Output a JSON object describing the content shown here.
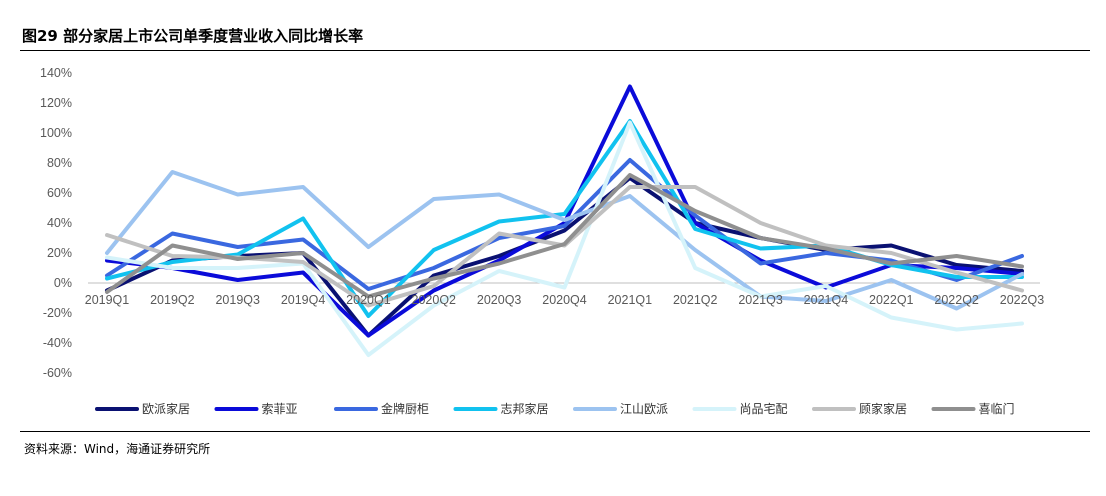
{
  "title": "图29 部分家居上市公司单季度营业收入同比增长率",
  "source": "资料来源：Wind，海通证券研究所",
  "chart_data": {
    "type": "line",
    "categories": [
      "2019Q1",
      "2019Q2",
      "2019Q3",
      "2019Q4",
      "2020Q1",
      "2020Q2",
      "2020Q3",
      "2020Q4",
      "2021Q1",
      "2021Q2",
      "2021Q3",
      "2021Q4",
      "2022Q1",
      "2022Q2",
      "2022Q3"
    ],
    "ylim": [
      -60,
      140
    ],
    "yticks": [
      -60,
      -40,
      -20,
      0,
      20,
      40,
      60,
      80,
      100,
      120,
      140
    ],
    "ytick_labels": [
      "-60%",
      "-40%",
      "-20%",
      "0%",
      "20%",
      "40%",
      "60%",
      "80%",
      "100%",
      "120%",
      "140%"
    ],
    "grid": false,
    "legend_position": "bottom",
    "series": [
      {
        "name": "欧派家居",
        "color": "#0a1172",
        "values": [
          -5,
          15,
          18,
          20,
          -35,
          5,
          18,
          35,
          70,
          40,
          30,
          22,
          25,
          12,
          8
        ]
      },
      {
        "name": "索菲亚",
        "color": "#0b0bd9",
        "values": [
          15,
          10,
          2,
          7,
          -35,
          -5,
          15,
          40,
          131,
          40,
          15,
          -3,
          12,
          10,
          6
        ]
      },
      {
        "name": "金牌厨柜",
        "color": "#3a68e0",
        "values": [
          5,
          33,
          24,
          29,
          -4,
          10,
          30,
          38,
          82,
          45,
          13,
          20,
          15,
          2,
          18
        ]
      },
      {
        "name": "志邦家居",
        "color": "#11c2ef",
        "values": [
          3,
          14,
          19,
          43,
          -22,
          22,
          41,
          46,
          108,
          36,
          23,
          25,
          12,
          4,
          4
        ]
      },
      {
        "name": "江山欧派",
        "color": "#9cc3f0",
        "values": [
          20,
          74,
          59,
          64,
          24,
          56,
          59,
          42,
          58,
          22,
          -9,
          -12,
          2,
          -17,
          6
        ]
      },
      {
        "name": "尚品宅配",
        "color": "#d5f3fa",
        "values": [
          17,
          10,
          10,
          13,
          -48,
          -15,
          8,
          -3,
          107,
          10,
          -9,
          -2,
          -23,
          -31,
          -27
        ]
      },
      {
        "name": "顾家家居",
        "color": "#c0c0c0",
        "values": [
          32,
          18,
          17,
          14,
          -15,
          -2,
          33,
          25,
          64,
          64,
          40,
          25,
          20,
          7,
          -5
        ]
      },
      {
        "name": "喜临门",
        "color": "#8f8f8f",
        "values": [
          -6,
          25,
          16,
          20,
          -9,
          3,
          13,
          26,
          72,
          48,
          30,
          23,
          13,
          18,
          11
        ]
      }
    ]
  }
}
